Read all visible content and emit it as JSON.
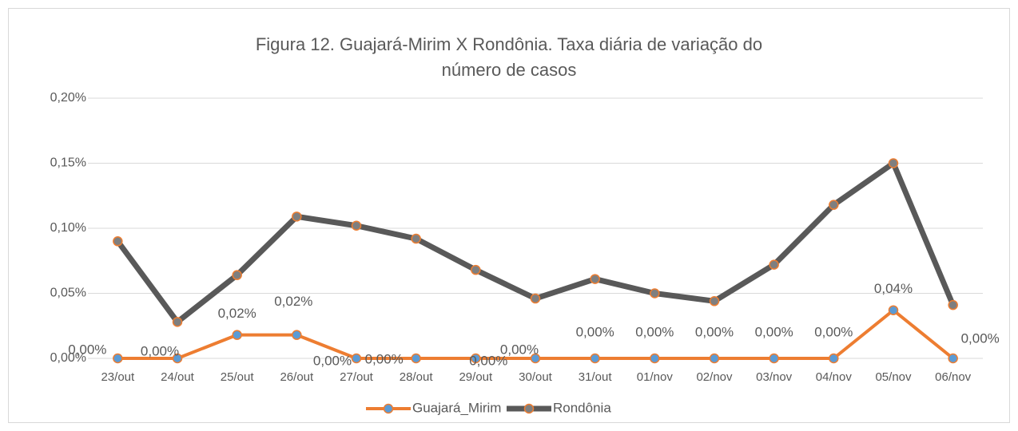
{
  "chart_data": {
    "type": "line",
    "title": "Figura 12. Guajará-Mirim X Rondônia. Taxa diária de variação do número de casos",
    "categories": [
      "23/out",
      "24/out",
      "25/out",
      "26/out",
      "27/out",
      "28/out",
      "29/out",
      "30/out",
      "31/out",
      "01/nov",
      "02/nov",
      "03/nov",
      "04/nov",
      "05/nov",
      "06/nov"
    ],
    "series": [
      {
        "name": "Guajará_Mirim",
        "color": "#ed7d31",
        "marker_color": "#5b9bd5",
        "values": [
          0,
          0,
          0.018,
          0.018,
          0,
          0,
          0,
          0,
          0,
          0,
          0,
          0,
          0,
          0.037,
          0
        ],
        "value_labels": [
          "0,00%",
          "0,00%",
          "0,02%",
          "0,02%",
          "0,00%",
          "0,00%",
          "0,00%",
          "0,00%",
          "0,00%",
          "0,00%",
          "0,00%",
          "0,00%",
          "0,00%",
          "0,04%",
          "0,00%"
        ]
      },
      {
        "name": "Rondônia",
        "color": "#595959",
        "marker_color": "#7f7f7f",
        "values": [
          0.09,
          0.028,
          0.064,
          0.109,
          0.102,
          0.092,
          0.068,
          0.046,
          0.061,
          0.05,
          0.044,
          0.072,
          0.118,
          0.15,
          0.041
        ]
      }
    ],
    "ylim": [
      0,
      0.2
    ],
    "yticks": [
      {
        "value": 0,
        "label": "0,00%"
      },
      {
        "value": 0.05,
        "label": "0,05%"
      },
      {
        "value": 0.1,
        "label": "0,10%"
      },
      {
        "value": 0.15,
        "label": "0,15%"
      },
      {
        "value": 0.2,
        "label": "0,20%"
      }
    ],
    "grid": true,
    "legend": "bottom"
  }
}
